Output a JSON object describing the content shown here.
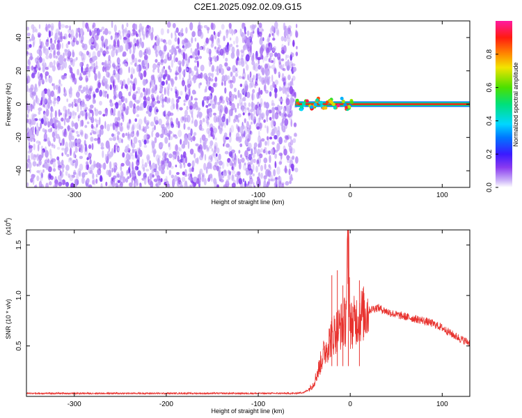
{
  "figure": {
    "title": "C2E1.2025.092.02.09.G15"
  },
  "colors": {
    "snr_line": "#e8332f",
    "spectrogram_scatter": "#6a00e8",
    "axis": "#000000"
  },
  "chart_data": [
    {
      "type": "heatmap",
      "title": "",
      "xlabel": "Height of straight line (km)",
      "ylabel": "Frequency (Hz)",
      "xlim": [
        -352,
        130
      ],
      "ylim": [
        -50,
        50
      ],
      "x_ticks": [
        -300,
        -200,
        -100,
        0,
        100
      ],
      "y_ticks": [
        -40,
        -20,
        0,
        20,
        40
      ],
      "x_tick_labels": [
        "-300",
        "-200",
        "-100",
        "0",
        "100"
      ],
      "y_tick_labels": [
        "-40",
        "-20",
        "0",
        "20",
        "40"
      ],
      "grid": false,
      "colorbar": {
        "label": "Normalized spectral amplitude",
        "range": [
          0,
          1
        ],
        "ticks": [
          0.0,
          0.2,
          0.4,
          0.6,
          0.8
        ],
        "tick_labels": [
          "0.0",
          "0.2",
          "0.4",
          "0.6",
          "0.8"
        ],
        "colormap": "rainbow (purple-blue-cyan-green-yellow-orange-red-magenta)"
      },
      "regions": [
        {
          "name": "noise",
          "x_range": [
            -352,
            -58
          ],
          "frequency_range": [
            -50,
            48
          ],
          "amplitude": [
            0.0,
            0.15
          ]
        },
        {
          "name": "signal_line",
          "x_range": [
            -60,
            130
          ],
          "center_frequency_hz": 0,
          "amplitude": [
            0.2,
            1.0
          ]
        }
      ]
    },
    {
      "type": "line",
      "title": "",
      "xlabel": "Height of straight line (km)",
      "ylabel": "SNR (10 * v/v)",
      "y_multiplier": "(x10",
      "y_multiplier_exp": "4",
      "y_multiplier_close": ")",
      "xlim": [
        -352,
        130
      ],
      "ylim": [
        0,
        1.65
      ],
      "x_ticks": [
        -300,
        -200,
        -100,
        0,
        100
      ],
      "y_ticks": [
        0.5,
        1.0,
        1.5
      ],
      "x_tick_labels": [
        "-300",
        "-200",
        "-100",
        "0",
        "100"
      ],
      "y_tick_labels": [
        "0.5",
        "1.0",
        "1.5"
      ],
      "grid": false,
      "series": [
        {
          "x": [
            -352,
            -300,
            -250,
            -200,
            -150,
            -100,
            -60,
            -50,
            -45,
            -40,
            -35,
            -30,
            -25,
            -20,
            -15,
            -10,
            -5,
            -2,
            0,
            5,
            10,
            15,
            20,
            25,
            30,
            35,
            40,
            50,
            60,
            70,
            80,
            90,
            100,
            110,
            120,
            130
          ],
          "y": [
            0.03,
            0.03,
            0.03,
            0.03,
            0.03,
            0.03,
            0.03,
            0.04,
            0.07,
            0.12,
            0.25,
            0.4,
            0.5,
            0.6,
            0.65,
            0.7,
            0.75,
            1.6,
            0.7,
            0.75,
            0.8,
            0.82,
            0.85,
            0.87,
            0.88,
            0.86,
            0.84,
            0.81,
            0.79,
            0.77,
            0.75,
            0.72,
            0.68,
            0.62,
            0.57,
            0.53
          ],
          "spikes": [
            {
              "x": -20,
              "y": 1.2
            },
            {
              "x": -14,
              "y": 1.25
            },
            {
              "x": -8,
              "y": 1.1
            },
            {
              "x": -2,
              "y": 1.65
            },
            {
              "x": 10,
              "y": 1.15
            }
          ]
        }
      ]
    }
  ]
}
